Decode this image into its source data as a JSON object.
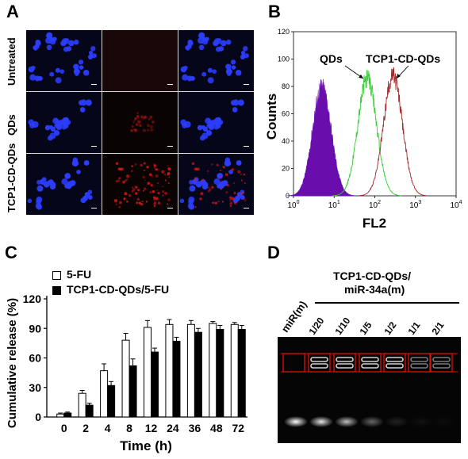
{
  "panels": {
    "a": {
      "letter": "A",
      "row_labels": [
        "Untreated",
        "QDs",
        "TCP1-CD-QDs"
      ]
    },
    "b": {
      "letter": "B",
      "ylabel": "Counts",
      "xlabel": "FL2",
      "yticks": [
        "0",
        "20",
        "40",
        "60",
        "80",
        "100",
        "120"
      ],
      "xticks": [
        {
          "base": "10",
          "exp": "0"
        },
        {
          "base": "10",
          "exp": "1"
        },
        {
          "base": "10",
          "exp": "2"
        },
        {
          "base": "10",
          "exp": "3"
        },
        {
          "base": "10",
          "exp": "4"
        }
      ],
      "annotations": [
        "QDs",
        "TCP1-CD-QDs"
      ],
      "colors": {
        "control": "#6a0dad",
        "qds": "#33cc33",
        "tcp1": "#a52a2a"
      }
    },
    "c": {
      "letter": "C",
      "legend": [
        "5-FU",
        "TCP1-CD-QDs/5-FU"
      ]
    },
    "d": {
      "letter": "D",
      "group_label_line1": "TCP1-CD-QDs/",
      "group_label_line2": "miR-34a(m)",
      "lane_labels": [
        "miR(m)",
        "1/20",
        "1/10",
        "1/5",
        "1/2",
        "1/1",
        "2/1"
      ]
    }
  },
  "chart_data": [
    {
      "type": "area",
      "panel": "B",
      "title": "",
      "xlabel": "FL2",
      "ylabel": "Counts",
      "xscale": "log",
      "xlim": [
        1,
        10000
      ],
      "ylim": [
        0,
        120
      ],
      "series": [
        {
          "peak_x": 5,
          "peak_y": 80,
          "color": "#6a0dad",
          "fill": true
        },
        {
          "name": "QDs",
          "peak_x": 65,
          "peak_y": 86,
          "color": "#33cc33",
          "fill": false
        },
        {
          "name": "TCP1-CD-QDs",
          "peak_x": 280,
          "peak_y": 88,
          "color": "#a52a2a",
          "fill": false
        }
      ]
    },
    {
      "type": "bar",
      "panel": "C",
      "xlabel": "Time (h)",
      "ylabel": "Cumulative release  (%)",
      "ylim": [
        0,
        120
      ],
      "yticks": [
        0,
        30,
        60,
        90,
        120
      ],
      "categories": [
        "0",
        "2",
        "4",
        "8",
        "12",
        "24",
        "36",
        "48",
        "72"
      ],
      "series": [
        {
          "name": "5-FU",
          "values": [
            3,
            24,
            47,
            78,
            91,
            94,
            94,
            95,
            94
          ],
          "errors": [
            1,
            3,
            7,
            7,
            7,
            5,
            4,
            2,
            2
          ]
        },
        {
          "name": "TCP1-CD-QDs/5-FU",
          "values": [
            4,
            12,
            32,
            52,
            66,
            77,
            86,
            89,
            89
          ],
          "errors": [
            1,
            2,
            4,
            7,
            4,
            4,
            4,
            4,
            4
          ]
        }
      ]
    }
  ]
}
